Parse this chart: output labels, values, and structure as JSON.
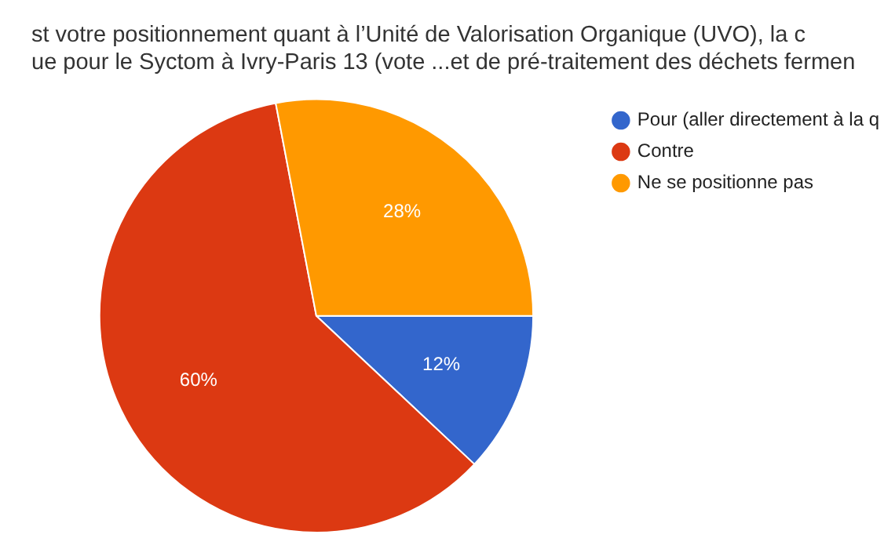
{
  "chart_data": {
    "type": "pie",
    "title": [
      "st votre positionnement quant à l’Unité de Valorisation Organique (UVO), la c",
      "ue pour le Syctom à Ivry-Paris 13 (vote ...et de pré-traitement des déchets fermen"
    ],
    "categories": [
      "Pour (aller directement à la q",
      "Contre",
      "Ne se positionne pas"
    ],
    "values": [
      12,
      60,
      28
    ],
    "colors": [
      "#3366cc",
      "#dc3912",
      "#ff9900"
    ],
    "value_labels": [
      "12%",
      "60%",
      "28%"
    ],
    "legend": "right"
  }
}
